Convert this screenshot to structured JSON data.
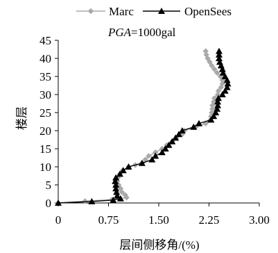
{
  "chart_data": {
    "type": "line",
    "orientation": "profile",
    "annotation": {
      "italic_part": "PGA",
      "rest": "=1000gal"
    },
    "xlabel": "层间侧移角/(%)",
    "ylabel": "楼层",
    "xlim": [
      0,
      3.0
    ],
    "ylim": [
      0,
      45
    ],
    "xticks": [
      0,
      0.75,
      1.5,
      2.25,
      3.0
    ],
    "xtick_labels": [
      "0",
      "0.75",
      "1.50",
      "2.25",
      "3.00"
    ],
    "yticks": [
      0,
      5,
      10,
      15,
      20,
      25,
      30,
      35,
      40,
      45
    ],
    "ytick_labels": [
      "0",
      "5",
      "10",
      "15",
      "20",
      "25",
      "30",
      "35",
      "40",
      "45"
    ],
    "grid": false,
    "legend_position": "top",
    "series": [
      {
        "name": "Marc",
        "color": "#a9a9a9",
        "marker": "diamond",
        "points": [
          [
            0.0,
            0
          ],
          [
            0.4,
            0.5
          ],
          [
            0.8,
            0.9
          ],
          [
            1.02,
            1.5
          ],
          [
            1.0,
            2.2
          ],
          [
            0.95,
            3
          ],
          [
            0.93,
            4
          ],
          [
            0.9,
            5
          ],
          [
            0.88,
            6
          ],
          [
            0.89,
            7
          ],
          [
            0.92,
            8
          ],
          [
            0.96,
            9
          ],
          [
            1.05,
            10
          ],
          [
            1.15,
            10.5
          ],
          [
            1.25,
            11
          ],
          [
            1.3,
            12
          ],
          [
            1.35,
            13
          ],
          [
            1.45,
            14
          ],
          [
            1.55,
            15
          ],
          [
            1.62,
            16
          ],
          [
            1.7,
            17
          ],
          [
            1.76,
            18
          ],
          [
            1.85,
            19
          ],
          [
            1.88,
            20
          ],
          [
            2.05,
            21
          ],
          [
            2.2,
            22
          ],
          [
            2.27,
            23
          ],
          [
            2.28,
            24
          ],
          [
            2.29,
            25
          ],
          [
            2.3,
            26
          ],
          [
            2.3,
            27
          ],
          [
            2.32,
            28
          ],
          [
            2.33,
            29
          ],
          [
            2.38,
            30
          ],
          [
            2.39,
            31
          ],
          [
            2.43,
            32
          ],
          [
            2.45,
            33
          ],
          [
            2.45,
            34
          ],
          [
            2.42,
            35
          ],
          [
            2.37,
            36
          ],
          [
            2.33,
            37
          ],
          [
            2.29,
            38
          ],
          [
            2.26,
            39
          ],
          [
            2.23,
            40
          ],
          [
            2.21,
            41
          ],
          [
            2.2,
            42
          ]
        ]
      },
      {
        "name": "OpenSees",
        "color": "#000000",
        "marker": "triangle",
        "points": [
          [
            0.0,
            0
          ],
          [
            0.5,
            0.4
          ],
          [
            0.82,
            0.8
          ],
          [
            0.93,
            1.2
          ],
          [
            0.88,
            2
          ],
          [
            0.87,
            3
          ],
          [
            0.86,
            4
          ],
          [
            0.86,
            5
          ],
          [
            0.85,
            6
          ],
          [
            0.86,
            7
          ],
          [
            0.92,
            8
          ],
          [
            0.97,
            9
          ],
          [
            1.05,
            10
          ],
          [
            1.25,
            11
          ],
          [
            1.4,
            12
          ],
          [
            1.45,
            13
          ],
          [
            1.55,
            14
          ],
          [
            1.6,
            15
          ],
          [
            1.65,
            16
          ],
          [
            1.7,
            17
          ],
          [
            1.75,
            18
          ],
          [
            1.8,
            19
          ],
          [
            1.85,
            20
          ],
          [
            2.02,
            21
          ],
          [
            2.1,
            22
          ],
          [
            2.28,
            23
          ],
          [
            2.32,
            24
          ],
          [
            2.35,
            25
          ],
          [
            2.37,
            26
          ],
          [
            2.38,
            27
          ],
          [
            2.38,
            28
          ],
          [
            2.39,
            29
          ],
          [
            2.45,
            30
          ],
          [
            2.49,
            31
          ],
          [
            2.52,
            32
          ],
          [
            2.53,
            33
          ],
          [
            2.52,
            34
          ],
          [
            2.49,
            35
          ],
          [
            2.46,
            36
          ],
          [
            2.45,
            37
          ],
          [
            2.43,
            38
          ],
          [
            2.41,
            39
          ],
          [
            2.4,
            40
          ],
          [
            2.4,
            41
          ],
          [
            2.4,
            42
          ]
        ]
      }
    ]
  }
}
